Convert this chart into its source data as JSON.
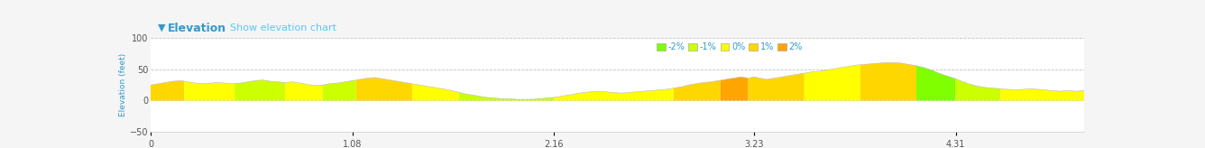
{
  "title_text": "▼  Elevation",
  "subtitle_text": "Show elevation chart",
  "ylabel": "Elevation (feet)",
  "xlabel_ticks": [
    0,
    1.08,
    2.16,
    3.23,
    4.31
  ],
  "ylim": [
    -50,
    100
  ],
  "yticks": [
    -50,
    0,
    50,
    100
  ],
  "bg_color": "#f5f5f5",
  "plot_bg_color": "#ffffff",
  "grid_color": "#bbbbbb",
  "header_bg": "#eeeeee",
  "legend_items": [
    {
      "label": "-2%",
      "color": "#7fff00"
    },
    {
      "label": "-1%",
      "color": "#ccff00"
    },
    {
      "label": "0%",
      "color": "#ffff00"
    },
    {
      "label": "1%",
      "color": "#ffd700"
    },
    {
      "label": "2%",
      "color": "#ffa500"
    }
  ],
  "elevation_profile": [
    [
      0.0,
      25
    ],
    [
      0.04,
      27
    ],
    [
      0.08,
      29
    ],
    [
      0.12,
      31
    ],
    [
      0.16,
      32
    ],
    [
      0.2,
      30
    ],
    [
      0.24,
      28
    ],
    [
      0.28,
      27
    ],
    [
      0.32,
      28
    ],
    [
      0.36,
      29
    ],
    [
      0.4,
      28
    ],
    [
      0.44,
      27
    ],
    [
      0.48,
      28
    ],
    [
      0.52,
      30
    ],
    [
      0.56,
      32
    ],
    [
      0.6,
      33
    ],
    [
      0.64,
      31
    ],
    [
      0.68,
      30
    ],
    [
      0.72,
      29
    ],
    [
      0.76,
      30
    ],
    [
      0.8,
      28
    ],
    [
      0.84,
      26
    ],
    [
      0.88,
      24
    ],
    [
      0.92,
      25
    ],
    [
      0.96,
      27
    ],
    [
      1.0,
      28
    ],
    [
      1.04,
      30
    ],
    [
      1.08,
      32
    ],
    [
      1.12,
      34
    ],
    [
      1.16,
      36
    ],
    [
      1.2,
      37
    ],
    [
      1.24,
      35
    ],
    [
      1.28,
      33
    ],
    [
      1.32,
      31
    ],
    [
      1.36,
      29
    ],
    [
      1.4,
      27
    ],
    [
      1.44,
      25
    ],
    [
      1.48,
      23
    ],
    [
      1.52,
      21
    ],
    [
      1.56,
      19
    ],
    [
      1.6,
      17
    ],
    [
      1.64,
      14
    ],
    [
      1.68,
      11
    ],
    [
      1.72,
      9
    ],
    [
      1.76,
      7
    ],
    [
      1.8,
      5
    ],
    [
      1.84,
      4
    ],
    [
      1.88,
      3
    ],
    [
      1.92,
      3
    ],
    [
      1.96,
      2
    ],
    [
      2.0,
      2
    ],
    [
      2.04,
      2
    ],
    [
      2.08,
      3
    ],
    [
      2.12,
      4
    ],
    [
      2.16,
      5
    ],
    [
      2.2,
      7
    ],
    [
      2.24,
      9
    ],
    [
      2.28,
      11
    ],
    [
      2.32,
      13
    ],
    [
      2.36,
      14
    ],
    [
      2.4,
      15
    ],
    [
      2.44,
      14
    ],
    [
      2.48,
      13
    ],
    [
      2.52,
      12
    ],
    [
      2.56,
      13
    ],
    [
      2.6,
      14
    ],
    [
      2.64,
      15
    ],
    [
      2.68,
      16
    ],
    [
      2.72,
      17
    ],
    [
      2.76,
      18
    ],
    [
      2.8,
      20
    ],
    [
      2.84,
      22
    ],
    [
      2.88,
      25
    ],
    [
      2.92,
      27
    ],
    [
      2.96,
      29
    ],
    [
      3.0,
      30
    ],
    [
      3.04,
      32
    ],
    [
      3.08,
      34
    ],
    [
      3.12,
      36
    ],
    [
      3.16,
      38
    ],
    [
      3.2,
      36
    ],
    [
      3.23,
      38
    ],
    [
      3.26,
      36
    ],
    [
      3.3,
      34
    ],
    [
      3.34,
      36
    ],
    [
      3.38,
      38
    ],
    [
      3.42,
      40
    ],
    [
      3.46,
      42
    ],
    [
      3.5,
      44
    ],
    [
      3.54,
      46
    ],
    [
      3.58,
      47
    ],
    [
      3.62,
      49
    ],
    [
      3.66,
      51
    ],
    [
      3.7,
      53
    ],
    [
      3.74,
      55
    ],
    [
      3.78,
      57
    ],
    [
      3.82,
      58
    ],
    [
      3.86,
      59
    ],
    [
      3.9,
      60
    ],
    [
      3.94,
      61
    ],
    [
      3.98,
      61
    ],
    [
      4.02,
      60
    ],
    [
      4.06,
      58
    ],
    [
      4.1,
      56
    ],
    [
      4.14,
      53
    ],
    [
      4.18,
      49
    ],
    [
      4.22,
      44
    ],
    [
      4.26,
      40
    ],
    [
      4.31,
      35
    ],
    [
      4.35,
      30
    ],
    [
      4.39,
      26
    ],
    [
      4.43,
      23
    ],
    [
      4.47,
      21
    ],
    [
      4.51,
      20
    ],
    [
      4.55,
      19
    ],
    [
      4.59,
      18
    ],
    [
      4.63,
      17
    ],
    [
      4.67,
      18
    ],
    [
      4.71,
      19
    ],
    [
      4.75,
      18
    ],
    [
      4.79,
      17
    ],
    [
      4.83,
      16
    ],
    [
      4.87,
      15
    ],
    [
      4.91,
      16
    ],
    [
      4.95,
      15
    ],
    [
      5.0,
      16
    ]
  ],
  "segment_colors": [
    {
      "x_start": 0.0,
      "x_end": 0.18,
      "color": "#ffd700"
    },
    {
      "x_start": 0.18,
      "x_end": 0.45,
      "color": "#ffff00"
    },
    {
      "x_start": 0.45,
      "x_end": 0.72,
      "color": "#ccff00"
    },
    {
      "x_start": 0.72,
      "x_end": 0.92,
      "color": "#ffff00"
    },
    {
      "x_start": 0.92,
      "x_end": 1.1,
      "color": "#ccff00"
    },
    {
      "x_start": 1.1,
      "x_end": 1.4,
      "color": "#ffd700"
    },
    {
      "x_start": 1.4,
      "x_end": 1.65,
      "color": "#ffff00"
    },
    {
      "x_start": 1.65,
      "x_end": 2.16,
      "color": "#ccff00"
    },
    {
      "x_start": 2.16,
      "x_end": 2.55,
      "color": "#ffff00"
    },
    {
      "x_start": 2.55,
      "x_end": 2.8,
      "color": "#ffff00"
    },
    {
      "x_start": 2.8,
      "x_end": 3.05,
      "color": "#ffd700"
    },
    {
      "x_start": 3.05,
      "x_end": 3.2,
      "color": "#ffa500"
    },
    {
      "x_start": 3.2,
      "x_end": 3.5,
      "color": "#ffd700"
    },
    {
      "x_start": 3.5,
      "x_end": 3.8,
      "color": "#ffff00"
    },
    {
      "x_start": 3.8,
      "x_end": 4.1,
      "color": "#ffd700"
    },
    {
      "x_start": 4.1,
      "x_end": 4.31,
      "color": "#7fff00"
    },
    {
      "x_start": 4.31,
      "x_end": 4.55,
      "color": "#ccff00"
    },
    {
      "x_start": 4.55,
      "x_end": 4.8,
      "color": "#ffff00"
    },
    {
      "x_start": 4.8,
      "x_end": 5.0,
      "color": "#ffff00"
    }
  ],
  "xmax": 5.0
}
